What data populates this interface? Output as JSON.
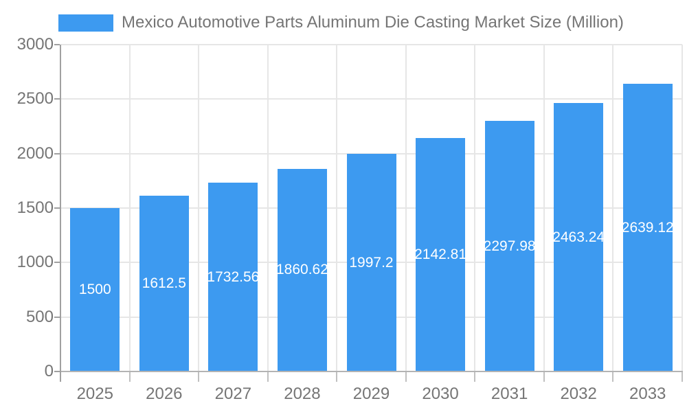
{
  "chart_data": {
    "type": "bar",
    "title": "Mexico Automotive Parts Aluminum Die Casting Market Size (Million)",
    "categories": [
      "2025",
      "2026",
      "2027",
      "2028",
      "2029",
      "2030",
      "2031",
      "2032",
      "2033"
    ],
    "values": [
      1500,
      1612.5,
      1732.56,
      1860.62,
      1997.2,
      2142.81,
      2297.98,
      2463.24,
      2639.12
    ],
    "bar_labels": [
      "1500",
      "1612.5",
      "1732.56",
      "1860.62",
      "1997.2",
      "2142.81",
      "2297.98",
      "2463.24",
      "2639.12"
    ],
    "xlabel": "",
    "ylabel": "",
    "ylim": [
      0,
      3000
    ],
    "yticks": [
      0,
      500,
      1000,
      1500,
      2000,
      2500,
      3000
    ],
    "grid": true,
    "legend_position": "top-left",
    "colors": {
      "bar": "#3D9AF0",
      "grid": "#e6e6e6",
      "y_axis": "#a0a0a0",
      "x_axis": "#b3b3b3",
      "tick": "#c0c0c0",
      "axis_text": "#757575",
      "bar_label_text": "#ffffff",
      "background": "#ffffff"
    }
  }
}
